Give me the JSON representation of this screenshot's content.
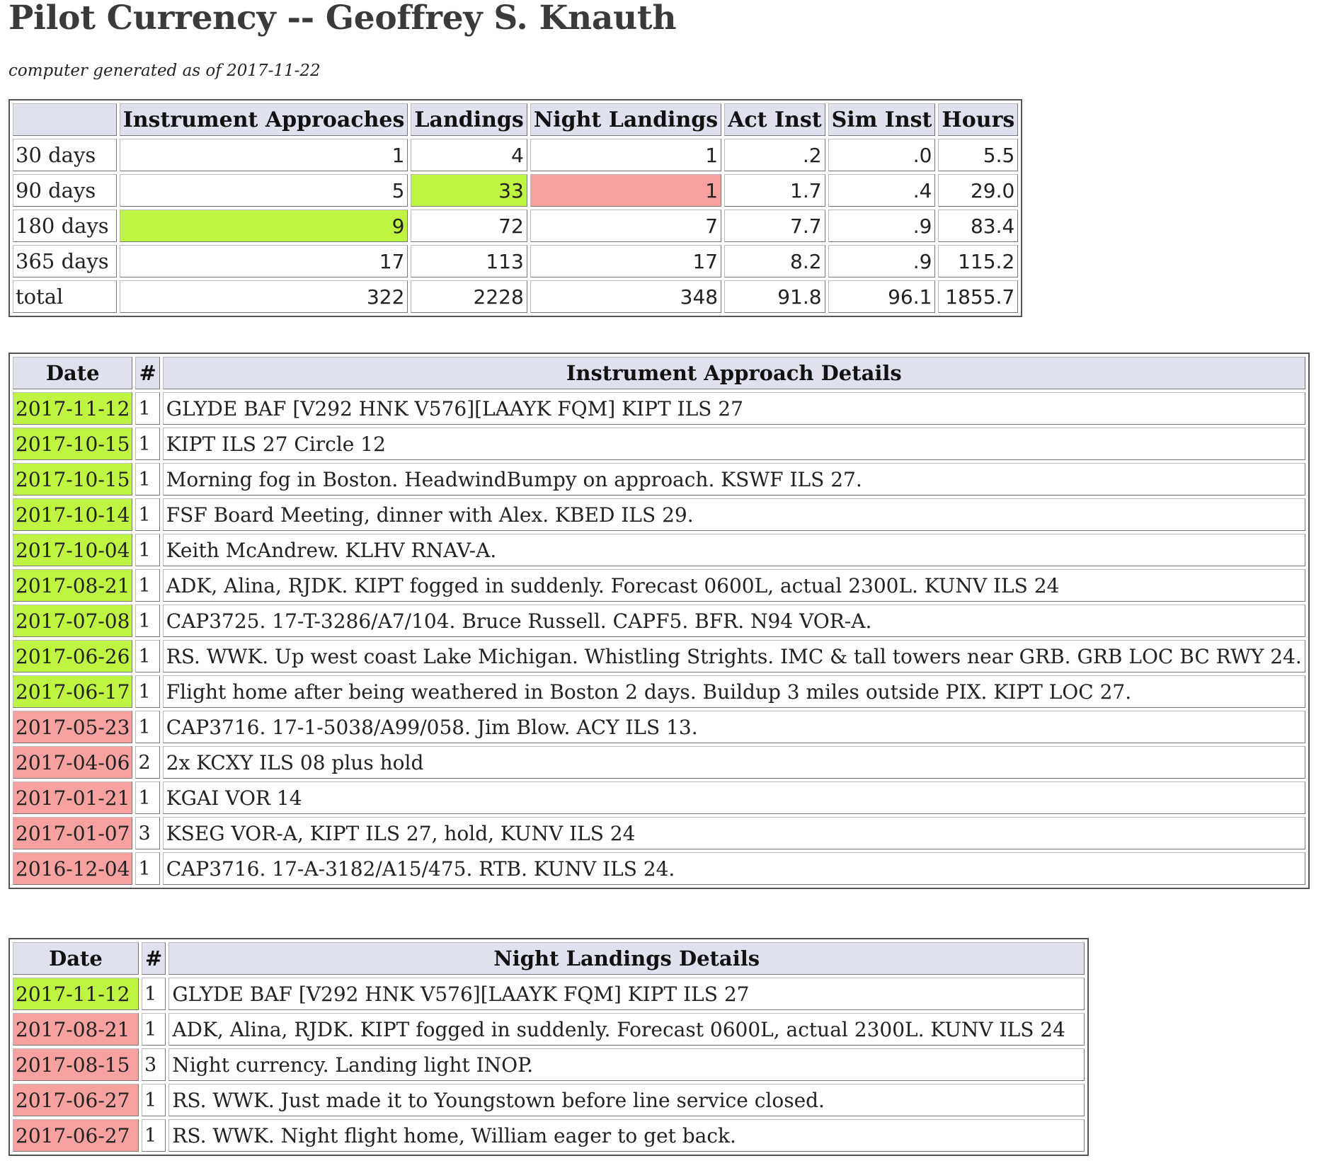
{
  "page": {
    "title": "Pilot Currency -- Geoffrey S. Knauth",
    "subtitle": "computer generated as of 2017-11-22"
  },
  "summary": {
    "headers": [
      "",
      "Instrument Approaches",
      "Landings",
      "Night Landings",
      "Act Inst",
      "Sim Inst",
      "Hours"
    ],
    "rows": [
      {
        "label": "30 days",
        "values": [
          "1",
          "4",
          "1",
          ".2",
          ".0",
          "5.5"
        ],
        "highlights": [
          "",
          "",
          "",
          "",
          "",
          ""
        ]
      },
      {
        "label": "90 days",
        "values": [
          "5",
          "33",
          "1",
          "1.7",
          ".4",
          "29.0"
        ],
        "highlights": [
          "",
          "green",
          "red",
          "",
          "",
          ""
        ]
      },
      {
        "label": "180 days",
        "values": [
          "9",
          "72",
          "7",
          "7.7",
          ".9",
          "83.4"
        ],
        "highlights": [
          "green",
          "",
          "",
          "",
          "",
          ""
        ]
      },
      {
        "label": "365 days",
        "values": [
          "17",
          "113",
          "17",
          "8.2",
          ".9",
          "115.2"
        ],
        "highlights": [
          "",
          "",
          "",
          "",
          "",
          ""
        ]
      },
      {
        "label": "total",
        "values": [
          "322",
          "2228",
          "348",
          "91.8",
          "96.1",
          "1855.7"
        ],
        "highlights": [
          "",
          "",
          "",
          "",
          "",
          ""
        ]
      }
    ]
  },
  "approaches": {
    "headers": {
      "date": "Date",
      "count": "#",
      "details": "Instrument Approach Details"
    },
    "rows": [
      {
        "date": "2017-11-12",
        "count": "1",
        "details": "GLYDE BAF [V292 HNK V576][LAAYK FQM] KIPT ILS 27",
        "status": "green"
      },
      {
        "date": "2017-10-15",
        "count": "1",
        "details": "KIPT ILS 27 Circle 12",
        "status": "green"
      },
      {
        "date": "2017-10-15",
        "count": "1",
        "details": "Morning fog in Boston. HeadwindBumpy on approach. KSWF ILS 27.",
        "status": "green"
      },
      {
        "date": "2017-10-14",
        "count": "1",
        "details": "FSF Board Meeting, dinner with Alex. KBED ILS 29.",
        "status": "green"
      },
      {
        "date": "2017-10-04",
        "count": "1",
        "details": "Keith McAndrew. KLHV RNAV-A.",
        "status": "green"
      },
      {
        "date": "2017-08-21",
        "count": "1",
        "details": "ADK, Alina, RJDK. KIPT fogged in suddenly. Forecast 0600L, actual 2300L. KUNV ILS 24",
        "status": "green"
      },
      {
        "date": "2017-07-08",
        "count": "1",
        "details": "CAP3725. 17-T-3286/A7/104. Bruce Russell. CAPF5. BFR. N94 VOR-A.",
        "status": "green"
      },
      {
        "date": "2017-06-26",
        "count": "1",
        "details": "RS. WWK. Up west coast Lake Michigan. Whistling Strights. IMC & tall towers near GRB. GRB LOC BC RWY 24.",
        "status": "green"
      },
      {
        "date": "2017-06-17",
        "count": "1",
        "details": "Flight home after being weathered in Boston 2 days. Buildup 3 miles outside PIX. KIPT LOC 27.",
        "status": "green"
      },
      {
        "date": "2017-05-23",
        "count": "1",
        "details": "CAP3716. 17-1-5038/A99/058. Jim Blow. ACY ILS 13.",
        "status": "red"
      },
      {
        "date": "2017-04-06",
        "count": "2",
        "details": "2x KCXY ILS 08 plus hold",
        "status": "red"
      },
      {
        "date": "2017-01-21",
        "count": "1",
        "details": "KGAI VOR 14",
        "status": "red"
      },
      {
        "date": "2017-01-07",
        "count": "3",
        "details": "KSEG VOR-A, KIPT ILS 27, hold, KUNV ILS 24",
        "status": "red"
      },
      {
        "date": "2016-12-04",
        "count": "1",
        "details": "CAP3716. 17-A-3182/A15/475. RTB. KUNV ILS 24.",
        "status": "red"
      }
    ]
  },
  "nights": {
    "headers": {
      "date": "Date",
      "count": "#",
      "details": "Night Landings Details"
    },
    "rows": [
      {
        "date": "2017-11-12",
        "count": "1",
        "details": "GLYDE BAF [V292 HNK V576][LAAYK FQM] KIPT ILS 27",
        "status": "green"
      },
      {
        "date": "2017-08-21",
        "count": "1",
        "details": "ADK, Alina, RJDK. KIPT fogged in suddenly. Forecast 0600L, actual 2300L. KUNV ILS 24",
        "status": "red"
      },
      {
        "date": "2017-08-15",
        "count": "3",
        "details": "Night currency. Landing light INOP.",
        "status": "red"
      },
      {
        "date": "2017-06-27",
        "count": "1",
        "details": "RS. WWK. Just made it to Youngstown before line service closed.",
        "status": "red"
      },
      {
        "date": "2017-06-27",
        "count": "1",
        "details": "RS. WWK. Night flight home, William eager to get back.",
        "status": "red"
      }
    ]
  },
  "colors": {
    "current": "#bff542",
    "expired": "#f7a1a1",
    "header_bg": "#dfe1ee"
  }
}
